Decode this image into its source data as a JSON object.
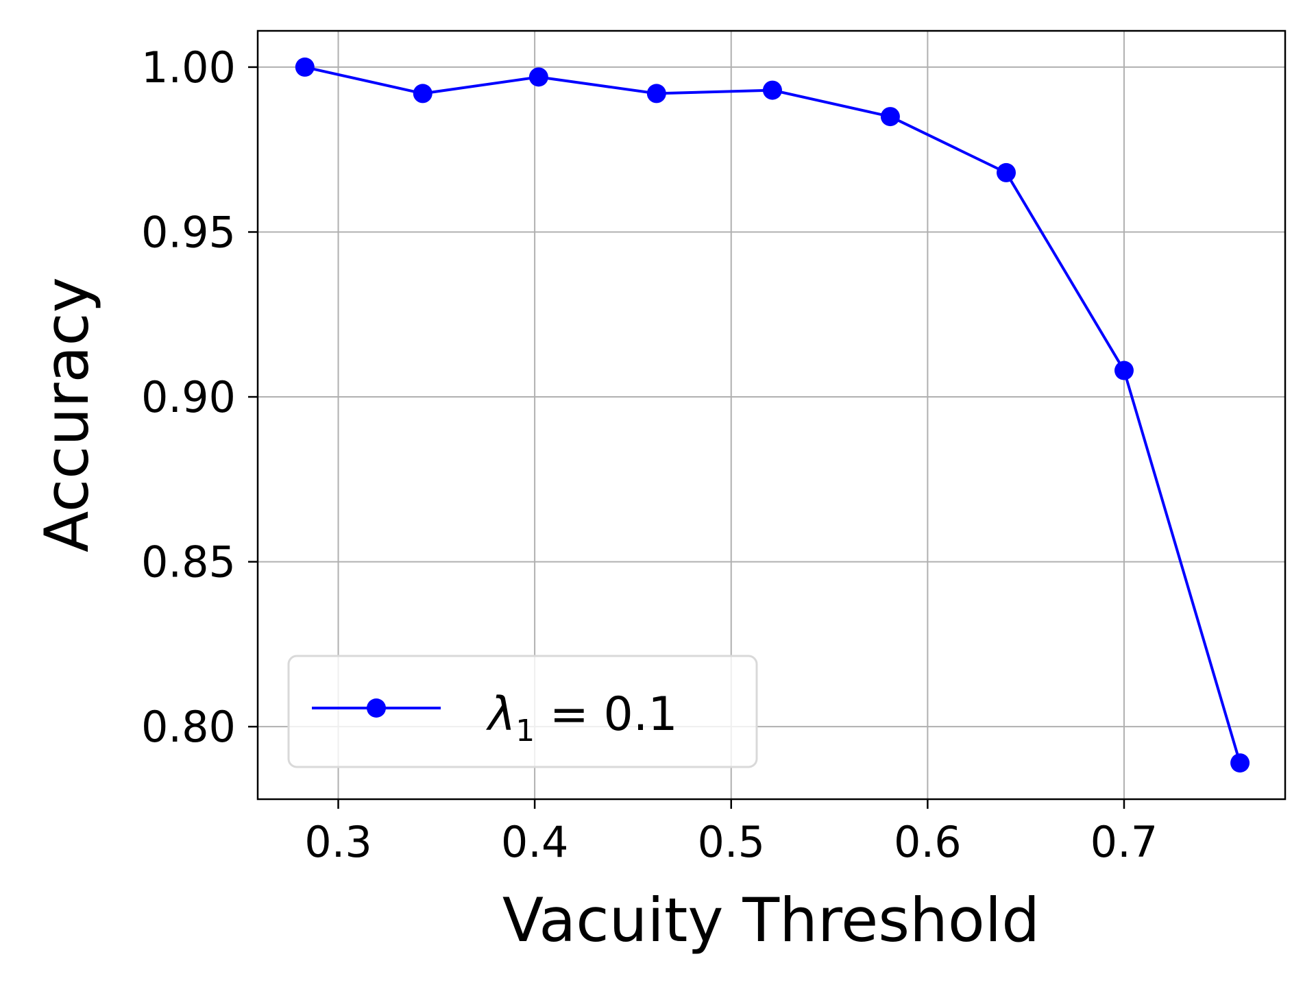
{
  "chart_data": {
    "type": "line",
    "title": "",
    "xlabel": "Vacuity Threshold",
    "ylabel": "Accuracy",
    "xlim": [
      0.259,
      0.782
    ],
    "ylim": [
      0.778,
      1.011
    ],
    "xticks": [
      0.3,
      0.4,
      0.5,
      0.6,
      0.7
    ],
    "xtick_labels": [
      "0.3",
      "0.4",
      "0.5",
      "0.6",
      "0.7"
    ],
    "yticks": [
      0.8,
      0.85,
      0.9,
      0.95,
      1.0
    ],
    "ytick_labels": [
      "0.80",
      "0.85",
      "0.90",
      "0.95",
      "1.00"
    ],
    "grid": true,
    "legend_position": "lower left",
    "series": [
      {
        "name": "λ1 = 0.1",
        "color": "#0000ff",
        "marker": "circle",
        "x": [
          0.283,
          0.343,
          0.402,
          0.462,
          0.521,
          0.581,
          0.64,
          0.7,
          0.759
        ],
        "y": [
          1.0,
          0.992,
          0.997,
          0.992,
          0.993,
          0.985,
          0.968,
          0.908,
          0.789
        ]
      }
    ]
  },
  "legend": {
    "symbol": "λ",
    "subscript": "1",
    "rest": " = 0.1"
  },
  "colors": {
    "series": "#0000ff",
    "grid": "#b0b0b0",
    "axes": "#000000",
    "legend_border": "#d9d9d9"
  }
}
